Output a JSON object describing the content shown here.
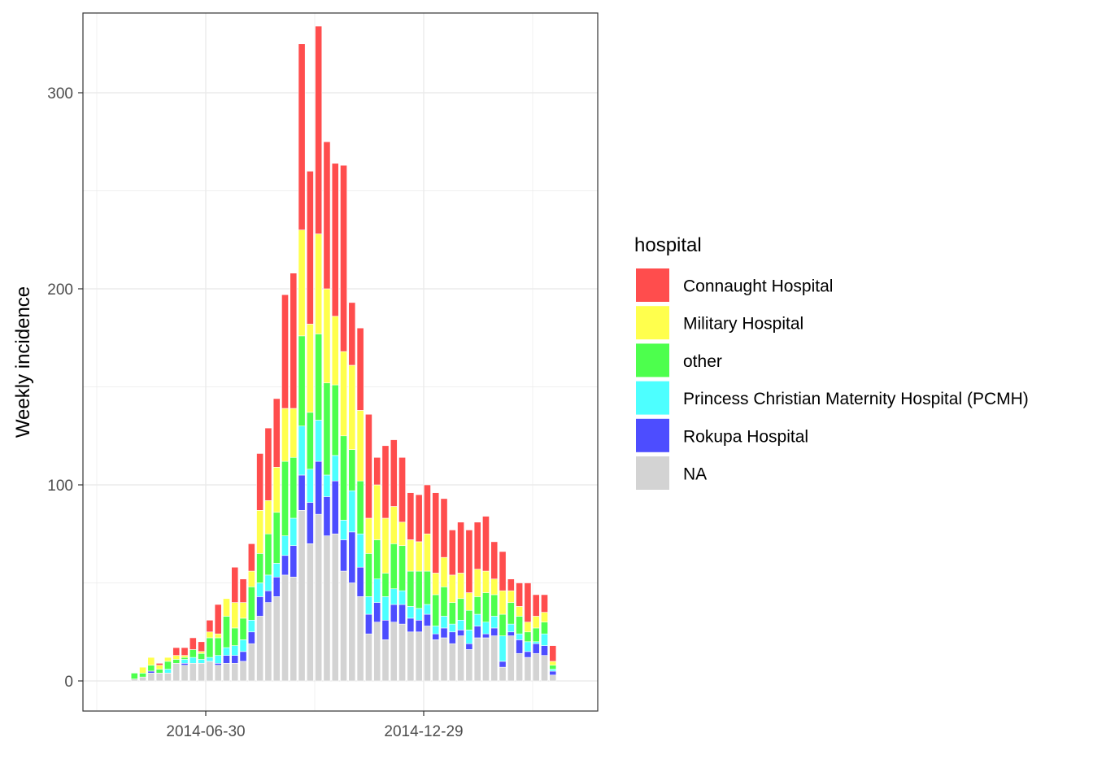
{
  "chart_data": {
    "type": "bar",
    "stacked": true,
    "title": "",
    "xlabel": "",
    "ylabel": "Weekly incidence",
    "ylim": [
      -15,
      335
    ],
    "yticks": [
      0,
      100,
      200,
      300
    ],
    "x_tick_labels": [
      "2014-06-30",
      "2014-12-29"
    ],
    "grid": true,
    "legend_position": "right",
    "legend_title": "hospital",
    "colors": {
      "Connaught Hospital": "#ff4d4d",
      "Military Hospital": "#ffff4d",
      "other": "#4dff4d",
      "Princess Christian Maternity Hospital (PCMH)": "#4dffff",
      "Rokupa Hospital": "#4d4dff",
      "NA": "#d3d3d3"
    },
    "series": [
      {
        "name": "NA",
        "values": [
          0,
          1,
          2,
          4,
          4,
          4,
          9,
          8,
          9,
          9,
          10,
          8,
          9,
          9,
          10,
          19,
          33,
          40,
          43,
          54,
          53,
          87,
          70,
          85,
          74,
          75,
          56,
          50,
          43,
          24,
          30,
          21,
          30,
          29,
          25,
          25,
          28,
          21,
          22,
          19,
          23,
          16,
          22,
          22,
          23,
          7,
          23,
          14,
          12,
          14,
          13,
          3
        ]
      },
      {
        "name": "Rokupa Hospital",
        "values": [
          0,
          0,
          0,
          1,
          0,
          0,
          0,
          1,
          0,
          0,
          0,
          1,
          4,
          4,
          5,
          6,
          10,
          6,
          10,
          10,
          16,
          18,
          21,
          27,
          20,
          27,
          16,
          26,
          15,
          10,
          10,
          10,
          9,
          10,
          7,
          6,
          6,
          3,
          5,
          6,
          3,
          3,
          6,
          2,
          4,
          3,
          2,
          7,
          3,
          5,
          5,
          2
        ]
      },
      {
        "name": "Princess Christian Maternity Hospital (PCMH)",
        "values": [
          0,
          0,
          0,
          0,
          0,
          2,
          0,
          2,
          3,
          2,
          2,
          4,
          4,
          5,
          6,
          6,
          7,
          8,
          7,
          10,
          14,
          25,
          17,
          21,
          11,
          13,
          10,
          21,
          17,
          9,
          12,
          12,
          8,
          7,
          6,
          6,
          5,
          4,
          6,
          4,
          5,
          7,
          6,
          6,
          6,
          13,
          4,
          3,
          5,
          1,
          6,
          1
        ]
      },
      {
        "name": "other",
        "values": [
          0,
          3,
          2,
          3,
          2,
          4,
          2,
          1,
          4,
          3,
          10,
          9,
          16,
          9,
          11,
          17,
          15,
          21,
          26,
          38,
          31,
          46,
          29,
          44,
          47,
          36,
          43,
          21,
          27,
          22,
          20,
          12,
          23,
          23,
          18,
          19,
          17,
          16,
          15,
          11,
          11,
          10,
          9,
          15,
          11,
          11,
          11,
          9,
          5,
          7,
          6,
          2
        ]
      },
      {
        "name": "Military Hospital",
        "values": [
          0,
          0,
          3,
          4,
          2,
          2,
          2,
          1,
          0,
          1,
          3,
          2,
          9,
          13,
          8,
          8,
          22,
          17,
          23,
          27,
          25,
          54,
          45,
          51,
          48,
          35,
          43,
          43,
          36,
          18,
          28,
          28,
          19,
          12,
          16,
          15,
          19,
          11,
          15,
          14,
          13,
          9,
          14,
          11,
          8,
          12,
          6,
          5,
          5,
          6,
          5,
          2
        ]
      },
      {
        "name": "Connaught Hospital",
        "values": [
          0,
          0,
          0,
          0,
          1,
          0,
          4,
          4,
          6,
          5,
          6,
          15,
          0,
          18,
          12,
          14,
          29,
          37,
          35,
          58,
          69,
          95,
          78,
          106,
          75,
          78,
          95,
          32,
          42,
          53,
          14,
          37,
          34,
          33,
          24,
          24,
          25,
          41,
          30,
          23,
          26,
          32,
          24,
          28,
          19,
          20,
          6,
          12,
          20,
          11,
          9,
          8
        ]
      }
    ]
  }
}
